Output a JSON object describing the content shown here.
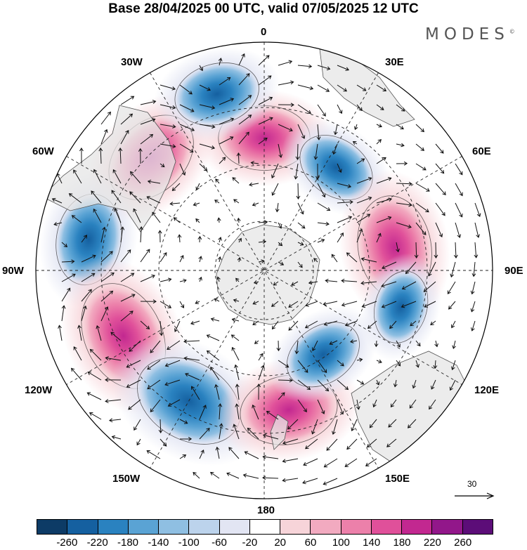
{
  "title": "Base 28/04/2025 00 UTC, valid 07/05/2025 12 UTC",
  "brand": "MODES",
  "brand_mark": "©",
  "longitude_labels": {
    "top": "0",
    "w30": "30W",
    "e30": "30E",
    "w60": "60W",
    "e60": "60E",
    "w90": "90W",
    "e90": "90E",
    "w120": "120W",
    "e120": "120E",
    "w150": "150W",
    "e150": "150E",
    "bottom": "180"
  },
  "reference_vector": {
    "label": "30"
  },
  "colorbar": {
    "colors": [
      "#0d3b66",
      "#1560a0",
      "#2a82c0",
      "#5aa3d4",
      "#8fbfe2",
      "#bcd3ec",
      "#e2e5f3",
      "#ffffff",
      "#f7d4d9",
      "#f2aac0",
      "#ec80aa",
      "#e0509a",
      "#c22890",
      "#92178a",
      "#5c0d78"
    ],
    "tick_labels": [
      "-260",
      "-220",
      "-180",
      "-140",
      "-100",
      "-60",
      "-20",
      "20",
      "60",
      "100",
      "140",
      "180",
      "220",
      "260"
    ]
  },
  "anomaly_centers": [
    {
      "sign": "positive",
      "value": 180,
      "lon": -45,
      "colat": 0.7
    },
    {
      "sign": "positive",
      "value": 160,
      "lon": 0,
      "colat": 0.58
    },
    {
      "sign": "negative",
      "value": -140,
      "lon": -15,
      "colat": 0.8
    },
    {
      "sign": "negative",
      "value": -120,
      "lon": 35,
      "colat": 0.55
    },
    {
      "sign": "negative",
      "value": -160,
      "lon": -80,
      "colat": 0.78
    },
    {
      "sign": "positive",
      "value": 200,
      "lon": 80,
      "colat": 0.58
    },
    {
      "sign": "negative",
      "value": -100,
      "lon": 105,
      "colat": 0.62
    },
    {
      "sign": "positive",
      "value": 220,
      "lon": -115,
      "colat": 0.68
    },
    {
      "sign": "negative",
      "value": -220,
      "lon": -150,
      "colat": 0.66
    },
    {
      "sign": "positive",
      "value": 180,
      "lon": 170,
      "colat": 0.62
    },
    {
      "sign": "negative",
      "value": -120,
      "lon": 145,
      "colat": 0.45
    }
  ]
}
